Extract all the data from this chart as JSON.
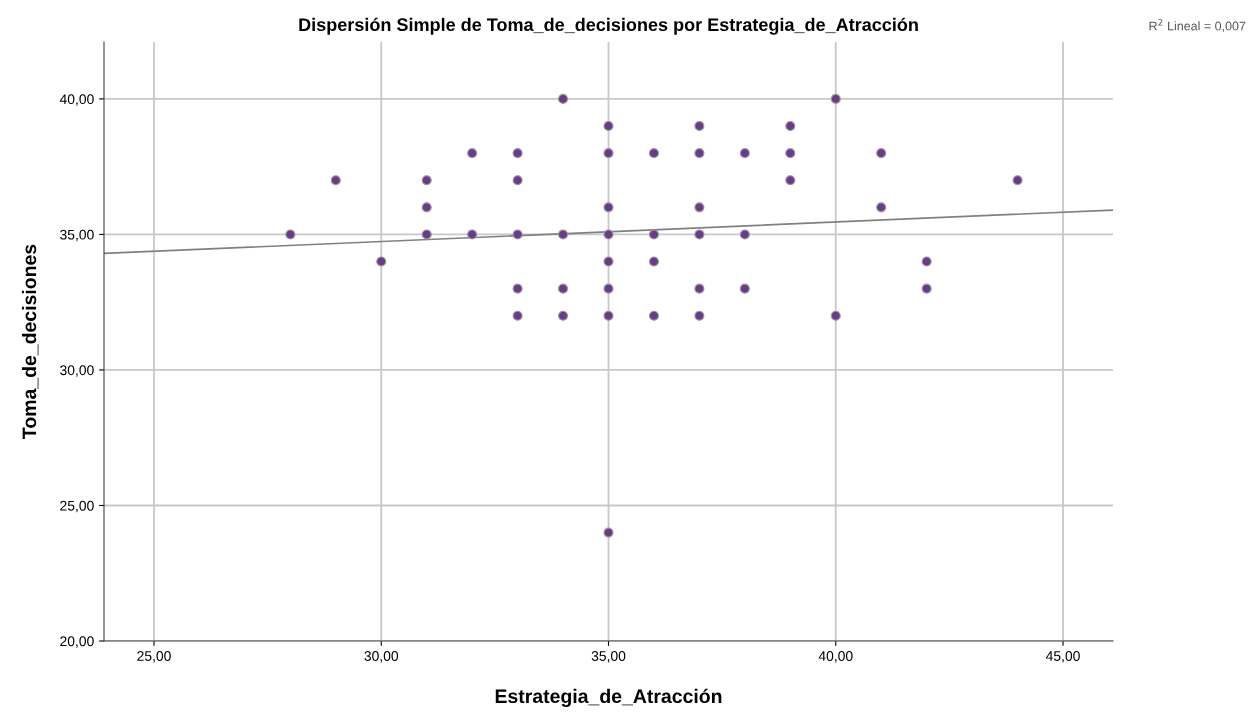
{
  "chart_data": {
    "type": "scatter",
    "title": "Dispersión Simple de Toma_de_decisiones por Estrategia_de_Atracción",
    "xlabel": "Estrategia_de_Atracción",
    "ylabel": "Toma_de_decisiones",
    "annotations": [
      "R$^{2}$ Lineal = 0,007"
    ],
    "xlim": [
      23.9,
      46.1
    ],
    "ylim": [
      20,
      42.1
    ],
    "xticks": [
      {
        "value": 25,
        "label": "25,00"
      },
      {
        "value": 30,
        "label": "30,00"
      },
      {
        "value": 35,
        "label": "35,00"
      },
      {
        "value": 40,
        "label": "40,00"
      },
      {
        "value": 45,
        "label": "45,00"
      }
    ],
    "yticks": [
      {
        "value": 20,
        "label": "20,00"
      },
      {
        "value": 25,
        "label": "25,00"
      },
      {
        "value": 30,
        "label": "30,00"
      },
      {
        "value": 35,
        "label": "35,00"
      },
      {
        "value": 40,
        "label": "40,00"
      }
    ],
    "grid": true,
    "series": [
      {
        "color": "#6a3a8c",
        "marker": "circle",
        "x": [
          28,
          29,
          30,
          31,
          31,
          31,
          32,
          32,
          33,
          33,
          33,
          33,
          33,
          34,
          34,
          34,
          34,
          35,
          35,
          35,
          35,
          35,
          35,
          35,
          35,
          36,
          36,
          36,
          36,
          37,
          37,
          37,
          37,
          37,
          37,
          38,
          38,
          38,
          39,
          39,
          39,
          40,
          40,
          41,
          41,
          42,
          42,
          44
        ],
        "values": [
          35,
          37,
          34,
          37,
          36,
          35,
          38,
          35,
          38,
          37,
          35,
          33,
          32,
          40,
          35,
          33,
          32,
          39,
          38,
          36,
          35,
          34,
          33,
          32,
          24,
          38,
          35,
          34,
          32,
          39,
          38,
          36,
          35,
          33,
          32,
          38,
          35,
          33,
          39,
          38,
          37,
          40,
          32,
          38,
          36,
          34,
          33,
          37
        ]
      },
      {
        "type": "line",
        "color": "#808080",
        "marker": "none",
        "line_style": "solid",
        "x": [
          23.9,
          46.1
        ],
        "values": [
          34.3,
          35.9
        ]
      }
    ]
  }
}
